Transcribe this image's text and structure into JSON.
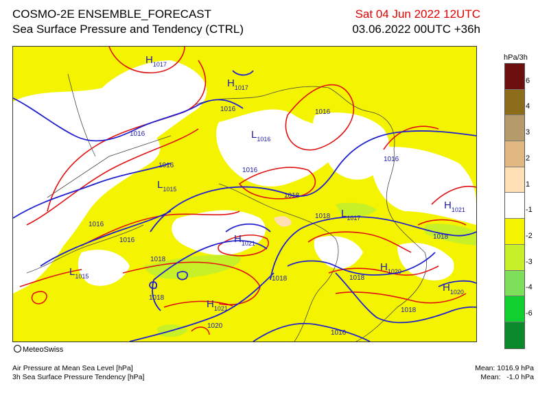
{
  "header": {
    "title_line1": "COSMO-2E ENSEMBLE_FORECAST",
    "title_line2": "Sea Surface Pressure and Tendency (CTRL)",
    "valid_time": "Sat 04 Jun 2022 12UTC",
    "run_time": "03.06.2022 00UTC +36h"
  },
  "legend": {
    "unit": "hPa/3h",
    "swatches": [
      {
        "color": "#6b0f0f",
        "label": "6"
      },
      {
        "color": "#8c6e1a",
        "label": "4"
      },
      {
        "color": "#b59a6a",
        "label": "3"
      },
      {
        "color": "#e0b880",
        "label": "2"
      },
      {
        "color": "#ffe0b4",
        "label": "1"
      },
      {
        "color": "#ffffff",
        "label": "-1"
      },
      {
        "color": "#f4f400",
        "label": "-2"
      },
      {
        "color": "#c8f028",
        "label": "-3"
      },
      {
        "color": "#7ee05a",
        "label": "-4"
      },
      {
        "color": "#10d030",
        "label": "-6"
      },
      {
        "color": "#0a8a2a"
      }
    ]
  },
  "map": {
    "isobar_color": "#1f1fd0",
    "tendency_color": "#e01010",
    "border_color": "#444444",
    "isobar_labels": [
      "1016",
      "1016",
      "1016",
      "1016",
      "1016",
      "1016",
      "1016",
      "1016",
      "1018",
      "1018",
      "1018",
      "1018",
      "1018",
      "1018",
      "1018",
      "1018",
      "1020",
      "1016"
    ],
    "pressure_centers": [
      {
        "letter": "H",
        "value": "1017"
      },
      {
        "letter": "H",
        "value": "1017"
      },
      {
        "letter": "L",
        "value": "1016"
      },
      {
        "letter": "L",
        "value": "1015"
      },
      {
        "letter": "H",
        "value": "1021"
      },
      {
        "letter": "L",
        "value": "1017"
      },
      {
        "letter": "H",
        "value": "1021"
      },
      {
        "letter": "H",
        "value": "1020"
      },
      {
        "letter": "H",
        "value": "1020"
      },
      {
        "letter": "L",
        "value": "1015"
      },
      {
        "letter": "H",
        "value": "1021"
      }
    ]
  },
  "footer": {
    "credit": "MeteoSwiss",
    "desc_line1": "Air Pressure at Mean Sea Level [hPa]",
    "desc_line2": "3h Sea Surface Pressure Tendency [hPa]",
    "mean_pressure": "Mean: 1016.9 hPa",
    "mean_tendency": "Mean:   -1.0 hPa"
  }
}
